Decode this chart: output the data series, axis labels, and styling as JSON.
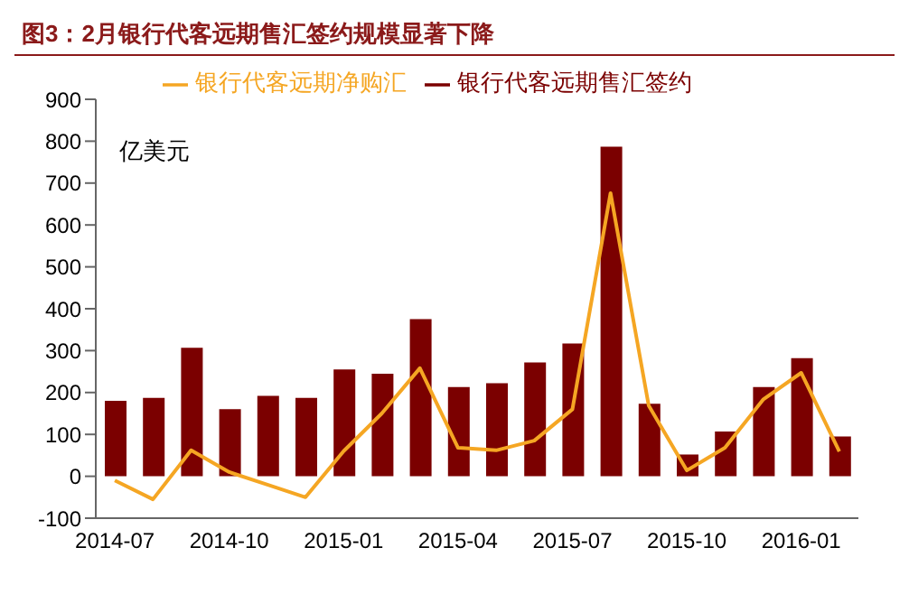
{
  "chart_data": {
    "type": "bar",
    "title": "图3：2月银行代客远期售汇签约规模显著下降",
    "ylabel": "亿美元",
    "categories": [
      "2014-07",
      null,
      null,
      "2014-10",
      null,
      null,
      "2015-01",
      null,
      null,
      "2015-04",
      null,
      null,
      "2015-07",
      null,
      null,
      "2015-10",
      null,
      null,
      "2016-01",
      null
    ],
    "series": [
      {
        "name": "银行代客远期售汇签约",
        "color": "#7b0000",
        "values": [
          180,
          187,
          307,
          160,
          192,
          187,
          255,
          245,
          375,
          213,
          222,
          272,
          317,
          787,
          173,
          52,
          107,
          213,
          282,
          95
        ]
      },
      {
        "name": "银行代客远期净购汇",
        "type": "line",
        "color": "#f5a623",
        "values": [
          -10,
          -55,
          62,
          10,
          -20,
          -50,
          60,
          150,
          258,
          68,
          62,
          85,
          160,
          676,
          169,
          14,
          68,
          183,
          247,
          59
        ]
      }
    ],
    "ylim": [
      -100,
      900
    ],
    "yticks": [
      -100,
      0,
      100,
      200,
      300,
      400,
      500,
      600,
      700,
      800,
      900
    ],
    "grid": false,
    "legend": "top",
    "marker": "none",
    "line_style": "solid"
  }
}
